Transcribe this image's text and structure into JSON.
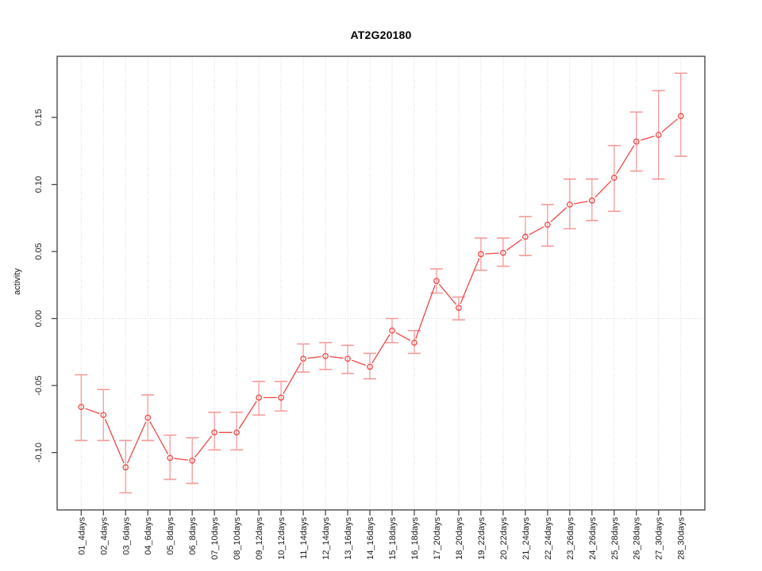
{
  "window": {
    "background": "#ffffff"
  },
  "chart_data": {
    "type": "line",
    "title": "AT2G20180",
    "xlabel": "",
    "ylabel": "activity",
    "categories": [
      "01_4days",
      "02_4days",
      "03_6days",
      "04_6days",
      "05_8days",
      "06_8days",
      "07_10days",
      "08_10days",
      "09_12days",
      "10_12days",
      "11_14days",
      "12_14days",
      "13_16days",
      "14_16days",
      "15_18days",
      "16_18days",
      "17_20days",
      "18_20days",
      "19_22days",
      "20_22days",
      "21_24days",
      "22_24days",
      "23_26days",
      "24_26days",
      "25_28days",
      "26_28days",
      "27_30days",
      "28_30days"
    ],
    "series": [
      {
        "name": "AT2G20180",
        "values": [
          -0.066,
          -0.072,
          -0.111,
          -0.074,
          -0.104,
          -0.106,
          -0.085,
          -0.085,
          -0.059,
          -0.059,
          -0.03,
          -0.028,
          -0.03,
          -0.036,
          -0.009,
          -0.018,
          0.028,
          0.008,
          0.048,
          0.049,
          0.061,
          0.07,
          0.085,
          0.088,
          0.105,
          0.132,
          0.137,
          0.151
        ],
        "error_low": [
          -0.091,
          -0.091,
          -0.13,
          -0.091,
          -0.12,
          -0.123,
          -0.098,
          -0.098,
          -0.072,
          -0.069,
          -0.04,
          -0.038,
          -0.041,
          -0.045,
          -0.018,
          -0.026,
          0.019,
          -0.001,
          0.036,
          0.039,
          0.047,
          0.054,
          0.067,
          0.073,
          0.08,
          0.11,
          0.104,
          0.121
        ],
        "error_high": [
          -0.042,
          -0.053,
          -0.091,
          -0.057,
          -0.087,
          -0.089,
          -0.07,
          -0.07,
          -0.047,
          -0.047,
          -0.019,
          -0.018,
          -0.02,
          -0.026,
          0.0,
          -0.009,
          0.037,
          0.016,
          0.06,
          0.06,
          0.076,
          0.085,
          0.104,
          0.104,
          0.129,
          0.154,
          0.17,
          0.183
        ]
      }
    ],
    "yticks": [
      -0.1,
      -0.05,
      0.0,
      0.05,
      0.1,
      0.15
    ],
    "ylim": [
      -0.1428,
      0.1956
    ],
    "grid": {
      "vertical_per_category": true,
      "horizontal_at_zero": true
    },
    "legend": null,
    "marker": "open-circle",
    "colors": {
      "line": "#ee4745",
      "marker": "#ee4745",
      "error_bar": "#f59b9b",
      "grid": "#d6d6d6",
      "axis": "#4a4a4a",
      "text": "#1a1a1a"
    }
  }
}
